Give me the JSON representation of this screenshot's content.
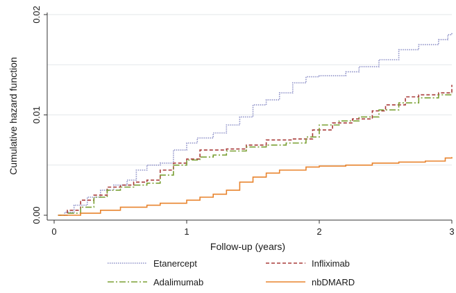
{
  "chart_data": {
    "type": "line",
    "xlabel": "Follow-up (years)",
    "ylabel": "Cumulative hazard function",
    "xlim": [
      0,
      3
    ],
    "ylim": [
      0,
      0.02
    ],
    "x_ticks": [
      0,
      1,
      2,
      3
    ],
    "x_tick_labels": [
      "0",
      "1",
      "2",
      "3"
    ],
    "y_ticks": [
      0,
      0.01,
      0.02
    ],
    "y_tick_labels": [
      "0.00",
      "0.01",
      "0.02"
    ],
    "y_gridlines": [
      0.005,
      0.01,
      0.015,
      0.02
    ],
    "grid": true,
    "legend_position": "bottom",
    "series": [
      {
        "name": "Etanercept",
        "color": "#8c8fc7",
        "dash": "1.5,1.5",
        "width": 1.6,
        "points": [
          [
            0.03,
            0
          ],
          [
            0.08,
            0.0003
          ],
          [
            0.15,
            0.001
          ],
          [
            0.25,
            0.0018
          ],
          [
            0.35,
            0.0025
          ],
          [
            0.45,
            0.003
          ],
          [
            0.55,
            0.0035
          ],
          [
            0.62,
            0.0045
          ],
          [
            0.7,
            0.005
          ],
          [
            0.8,
            0.0052
          ],
          [
            0.9,
            0.0065
          ],
          [
            1.0,
            0.0072
          ],
          [
            1.08,
            0.0077
          ],
          [
            1.2,
            0.0082
          ],
          [
            1.3,
            0.009
          ],
          [
            1.4,
            0.0098
          ],
          [
            1.5,
            0.011
          ],
          [
            1.6,
            0.0115
          ],
          [
            1.7,
            0.0122
          ],
          [
            1.8,
            0.0132
          ],
          [
            1.9,
            0.0138
          ],
          [
            2.0,
            0.0139
          ],
          [
            2.2,
            0.0143
          ],
          [
            2.3,
            0.0148
          ],
          [
            2.45,
            0.0155
          ],
          [
            2.6,
            0.0165
          ],
          [
            2.75,
            0.017
          ],
          [
            2.9,
            0.0175
          ],
          [
            2.97,
            0.018
          ],
          [
            3.0,
            0.0182
          ]
        ]
      },
      {
        "name": "Infliximab",
        "color": "#a83a38",
        "dash": "5,3",
        "width": 1.6,
        "points": [
          [
            0.03,
            0
          ],
          [
            0.1,
            0.0005
          ],
          [
            0.2,
            0.0015
          ],
          [
            0.3,
            0.002
          ],
          [
            0.4,
            0.0028
          ],
          [
            0.5,
            0.003
          ],
          [
            0.6,
            0.0033
          ],
          [
            0.7,
            0.0035
          ],
          [
            0.8,
            0.0045
          ],
          [
            0.9,
            0.0052
          ],
          [
            1.0,
            0.0056
          ],
          [
            1.1,
            0.0065
          ],
          [
            1.3,
            0.0066
          ],
          [
            1.45,
            0.007
          ],
          [
            1.6,
            0.0075
          ],
          [
            1.8,
            0.0076
          ],
          [
            1.95,
            0.0085
          ],
          [
            2.1,
            0.0092
          ],
          [
            2.25,
            0.0096
          ],
          [
            2.4,
            0.0104
          ],
          [
            2.5,
            0.011
          ],
          [
            2.65,
            0.0118
          ],
          [
            2.75,
            0.012
          ],
          [
            2.9,
            0.0122
          ],
          [
            3.0,
            0.013
          ]
        ]
      },
      {
        "name": "Adalimumab",
        "color": "#7aa034",
        "dash": "9,3,2,3",
        "width": 1.6,
        "points": [
          [
            0.03,
            0
          ],
          [
            0.1,
            0.0002
          ],
          [
            0.2,
            0.0008
          ],
          [
            0.3,
            0.0018
          ],
          [
            0.4,
            0.0025
          ],
          [
            0.5,
            0.0028
          ],
          [
            0.6,
            0.003
          ],
          [
            0.7,
            0.0032
          ],
          [
            0.8,
            0.004
          ],
          [
            0.9,
            0.005
          ],
          [
            1.0,
            0.0055
          ],
          [
            1.1,
            0.0058
          ],
          [
            1.2,
            0.006
          ],
          [
            1.3,
            0.0064
          ],
          [
            1.45,
            0.0068
          ],
          [
            1.6,
            0.007
          ],
          [
            1.75,
            0.0072
          ],
          [
            1.9,
            0.0078
          ],
          [
            2.0,
            0.009
          ],
          [
            2.15,
            0.0094
          ],
          [
            2.3,
            0.0098
          ],
          [
            2.45,
            0.0105
          ],
          [
            2.6,
            0.0112
          ],
          [
            2.75,
            0.0117
          ],
          [
            2.9,
            0.012
          ],
          [
            3.0,
            0.0122
          ]
        ]
      },
      {
        "name": "nbDMARD",
        "color": "#e8832d",
        "dash": "",
        "width": 1.6,
        "points": [
          [
            0.03,
            0
          ],
          [
            0.2,
            0.0002
          ],
          [
            0.35,
            0.0005
          ],
          [
            0.5,
            0.0008
          ],
          [
            0.7,
            0.001
          ],
          [
            0.8,
            0.0012
          ],
          [
            1.0,
            0.0015
          ],
          [
            1.1,
            0.0018
          ],
          [
            1.2,
            0.0021
          ],
          [
            1.3,
            0.0025
          ],
          [
            1.4,
            0.0033
          ],
          [
            1.5,
            0.0038
          ],
          [
            1.6,
            0.0042
          ],
          [
            1.7,
            0.0045
          ],
          [
            1.9,
            0.0048
          ],
          [
            2.0,
            0.0049
          ],
          [
            2.2,
            0.005
          ],
          [
            2.4,
            0.0052
          ],
          [
            2.6,
            0.0053
          ],
          [
            2.8,
            0.0054
          ],
          [
            2.95,
            0.0057
          ],
          [
            3.0,
            0.0058
          ]
        ]
      }
    ]
  }
}
